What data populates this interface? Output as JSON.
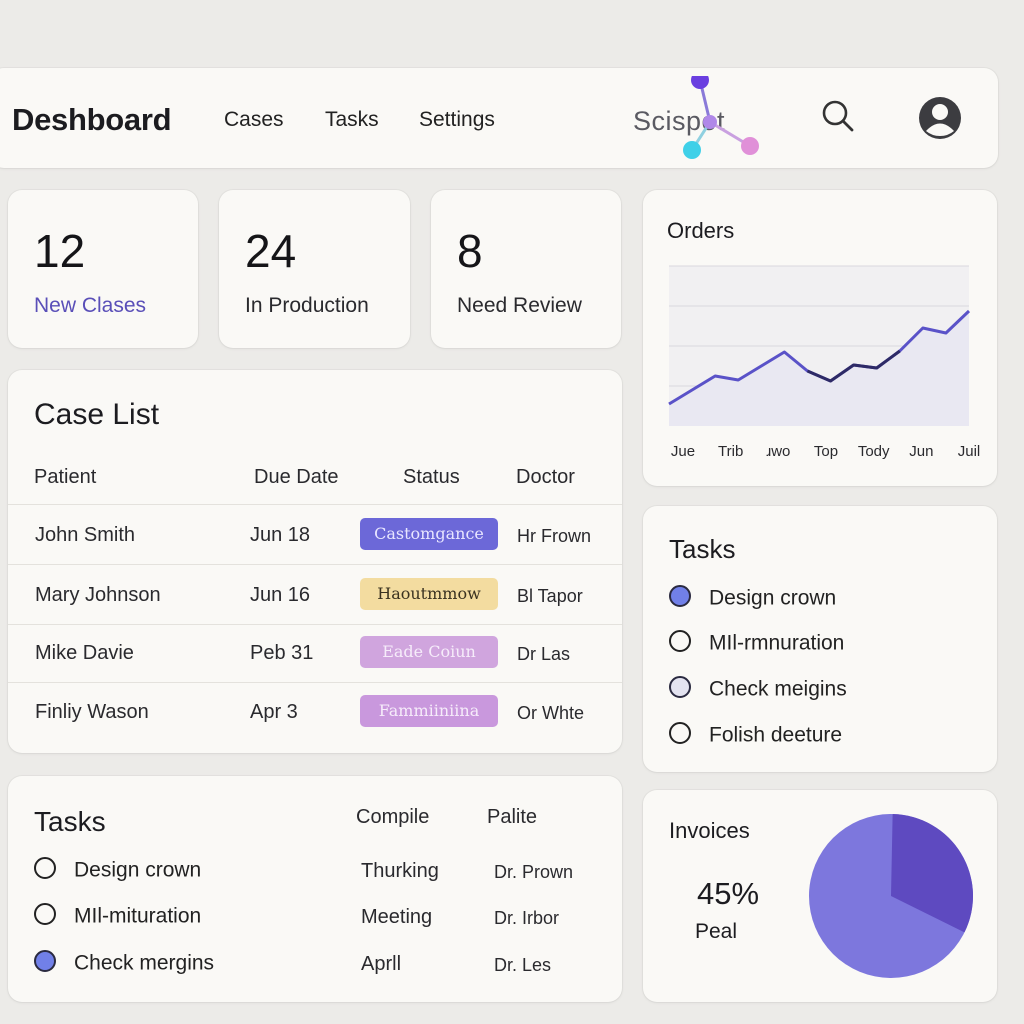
{
  "header": {
    "title": "Deshboard",
    "nav": [
      "Cases",
      "Tasks",
      "Settings"
    ],
    "logo_text": "Scispot",
    "search_icon": "search-icon",
    "avatar_icon": "user-avatar-icon"
  },
  "stats": [
    {
      "value": "12",
      "label": "New Clases"
    },
    {
      "value": "24",
      "label": "In Production"
    },
    {
      "value": "8",
      "label": "Need Review"
    }
  ],
  "case_list": {
    "title": "Case List",
    "columns": [
      "Patient",
      "Due Date",
      "Status",
      "Doctor"
    ],
    "rows": [
      {
        "patient": "John Smith",
        "due": "Jun 18",
        "status": "Castomgance",
        "doctor": "Hr Frown"
      },
      {
        "patient": "Mary Johnson",
        "due": "Jun 16",
        "status": "Haoutmmow",
        "doctor": "Bl Tapor"
      },
      {
        "patient": "Mike Davie",
        "due": "Peb 31",
        "status": "Eade Coiun",
        "doctor": "Dr Las"
      },
      {
        "patient": "Finliy Wason",
        "due": "Apr 3",
        "status": "Fammiiniina",
        "doctor": "Or Whte"
      }
    ]
  },
  "orders": {
    "title": "Orders"
  },
  "chart_data": {
    "type": "area",
    "title": "Orders",
    "categories": [
      "Jue",
      "Trib",
      "ɹwo",
      "Top",
      "Tody",
      "Jun",
      "Juil"
    ],
    "x": [
      0,
      1,
      2,
      3,
      4,
      5,
      6,
      7,
      8,
      9,
      10,
      11,
      12,
      13
    ],
    "values": [
      22,
      36,
      50,
      46,
      60,
      74,
      55,
      45,
      61,
      58,
      75,
      98,
      93,
      115
    ],
    "ylim": [
      0,
      160
    ],
    "grid": true,
    "legend": "none"
  },
  "tasks_right": {
    "title": "Tasks",
    "items": [
      {
        "label": "Design crown",
        "state": "filled"
      },
      {
        "label": "MIl-rmnuration",
        "state": "empty"
      },
      {
        "label": "Check meigins",
        "state": "light"
      },
      {
        "label": "Folish deeture",
        "state": "empty"
      }
    ]
  },
  "tasks_bottom": {
    "title": "Tasks",
    "columns": [
      "Compile",
      "Palite"
    ],
    "items": [
      {
        "label": "Design crown",
        "state": "empty",
        "col1": "Thurking",
        "col2": "Dr. Prown"
      },
      {
        "label": "MIl-mituration",
        "state": "empty",
        "col1": "Meeting",
        "col2": "Dr. Irbor"
      },
      {
        "label": "Check mergins",
        "state": "filled",
        "col1": "Aprll",
        "col2": "Dr. Les"
      }
    ]
  },
  "invoices": {
    "title": "Invoices",
    "percent": "45%",
    "percent_value": 45,
    "sub": "Peal",
    "colors": {
      "main": "#7d77dd",
      "slice": "#5e4ac0"
    }
  }
}
